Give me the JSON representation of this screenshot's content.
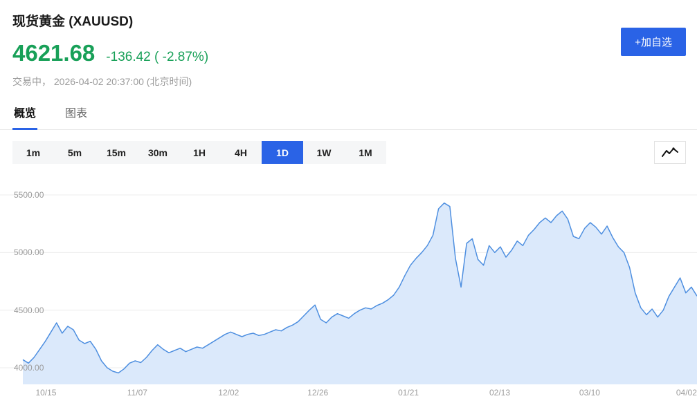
{
  "header": {
    "title": "现货黄金 (XAUUSD)",
    "price": "4621.68",
    "change": "-136.42 ( -2.87%)",
    "status": "交易中， 2026-04-02 20:37:00 (北京时间)",
    "add_watchlist_label": "+加自选"
  },
  "tabs": [
    {
      "key": "overview",
      "label": "概览",
      "active": true
    },
    {
      "key": "chart",
      "label": "图表",
      "active": false
    }
  ],
  "timeframes": [
    "1m",
    "5m",
    "15m",
    "30m",
    "1H",
    "4H",
    "1D",
    "1W",
    "1M"
  ],
  "selected_timeframe": "1D",
  "icons": {
    "chart_type_toggle": "line-chart-icon"
  },
  "colors": {
    "green": "#18a058",
    "accent_blue": "#2a63e6",
    "line_blue": "#4e8fe0",
    "area_fill": "#dbe9fb",
    "grid": "#ececec",
    "muted_text": "#9b9b9b"
  },
  "chart_data": {
    "type": "area",
    "title": "现货黄金 (XAUUSD) 1D",
    "xlabel": "",
    "ylabel": "",
    "ylim": [
      3950,
      5550
    ],
    "grid": true,
    "y_ticks": [
      4000,
      4500,
      5000,
      5500
    ],
    "y_tick_labels": [
      "4000.00",
      "4500.00",
      "5000.00",
      "5500.00"
    ],
    "x_ticks": [
      {
        "label": "10/15",
        "pos": 0.066
      },
      {
        "label": "11/07",
        "pos": 0.197
      },
      {
        "label": "12/02",
        "pos": 0.328
      },
      {
        "label": "12/26",
        "pos": 0.456
      },
      {
        "label": "01/21",
        "pos": 0.586
      },
      {
        "label": "02/13",
        "pos": 0.717
      },
      {
        "label": "03/10",
        "pos": 0.846
      },
      {
        "label": "04/02",
        "pos": 0.985
      }
    ],
    "values": [
      4070,
      4040,
      4090,
      4160,
      4230,
      4310,
      4390,
      4300,
      4360,
      4330,
      4240,
      4210,
      4230,
      4160,
      4060,
      4000,
      3970,
      3955,
      3990,
      4040,
      4060,
      4045,
      4090,
      4150,
      4200,
      4160,
      4130,
      4150,
      4170,
      4140,
      4160,
      4180,
      4170,
      4200,
      4230,
      4260,
      4290,
      4310,
      4290,
      4270,
      4290,
      4300,
      4280,
      4290,
      4310,
      4330,
      4320,
      4350,
      4370,
      4400,
      4450,
      4500,
      4545,
      4420,
      4390,
      4440,
      4470,
      4450,
      4430,
      4470,
      4500,
      4520,
      4510,
      4540,
      4560,
      4590,
      4630,
      4700,
      4800,
      4890,
      4950,
      5000,
      5060,
      5150,
      5380,
      5430,
      5400,
      4950,
      4700,
      5080,
      5120,
      4940,
      4890,
      5060,
      5000,
      5050,
      4960,
      5020,
      5100,
      5060,
      5150,
      5200,
      5260,
      5300,
      5260,
      5320,
      5360,
      5290,
      5140,
      5120,
      5210,
      5260,
      5220,
      5160,
      5230,
      5130,
      5050,
      5000,
      4870,
      4650,
      4520,
      4460,
      4510,
      4440,
      4500,
      4620,
      4700,
      4780,
      4650,
      4700,
      4622
    ]
  }
}
